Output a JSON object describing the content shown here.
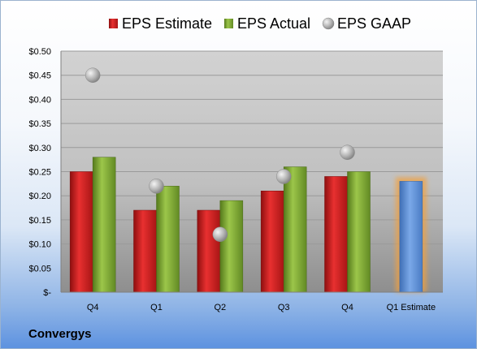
{
  "company": "Convergys",
  "chart_data": {
    "type": "bar",
    "categories": [
      "Q4",
      "Q1",
      "Q2",
      "Q3",
      "Q4",
      "Q1 Estimate"
    ],
    "series": [
      {
        "name": "EPS Estimate",
        "kind": "bar",
        "color": "#cc1f1f",
        "values": [
          0.25,
          0.17,
          0.17,
          0.21,
          0.24,
          null
        ]
      },
      {
        "name": "EPS Actual",
        "kind": "bar",
        "color": "#7fa832",
        "values": [
          0.28,
          0.22,
          0.19,
          0.26,
          0.25,
          null
        ]
      },
      {
        "name": "EPS GAAP",
        "kind": "marker",
        "color": "#a6a6a6",
        "values": [
          0.45,
          0.22,
          0.12,
          0.24,
          0.29,
          null
        ]
      },
      {
        "name": "",
        "kind": "highlight-bar",
        "color": "#5b8fd6",
        "glow": "#f0a040",
        "values": [
          null,
          null,
          null,
          null,
          null,
          0.23
        ]
      }
    ],
    "ylim": [
      0,
      0.5
    ],
    "yticks": [
      {
        "value": 0.5,
        "label": "$0.50"
      },
      {
        "value": 0.45,
        "label": "$0.45"
      },
      {
        "value": 0.4,
        "label": "$0.40"
      },
      {
        "value": 0.35,
        "label": "$0.35"
      },
      {
        "value": 0.3,
        "label": "$0.30"
      },
      {
        "value": 0.25,
        "label": "$0.25"
      },
      {
        "value": 0.2,
        "label": "$0.20"
      },
      {
        "value": 0.15,
        "label": "$0.15"
      },
      {
        "value": 0.1,
        "label": "$0.10"
      },
      {
        "value": 0.05,
        "label": "$0.05"
      },
      {
        "value": 0,
        "label": "$-"
      }
    ],
    "legend": [
      {
        "label": "EPS Estimate",
        "color": "#cc1f1f",
        "shape": "square"
      },
      {
        "label": "EPS Actual",
        "color": "#7fa832",
        "shape": "square"
      },
      {
        "label": "EPS GAAP",
        "color": "#a6a6a6",
        "shape": "circle"
      }
    ],
    "legend_position": "top",
    "grid": true
  }
}
